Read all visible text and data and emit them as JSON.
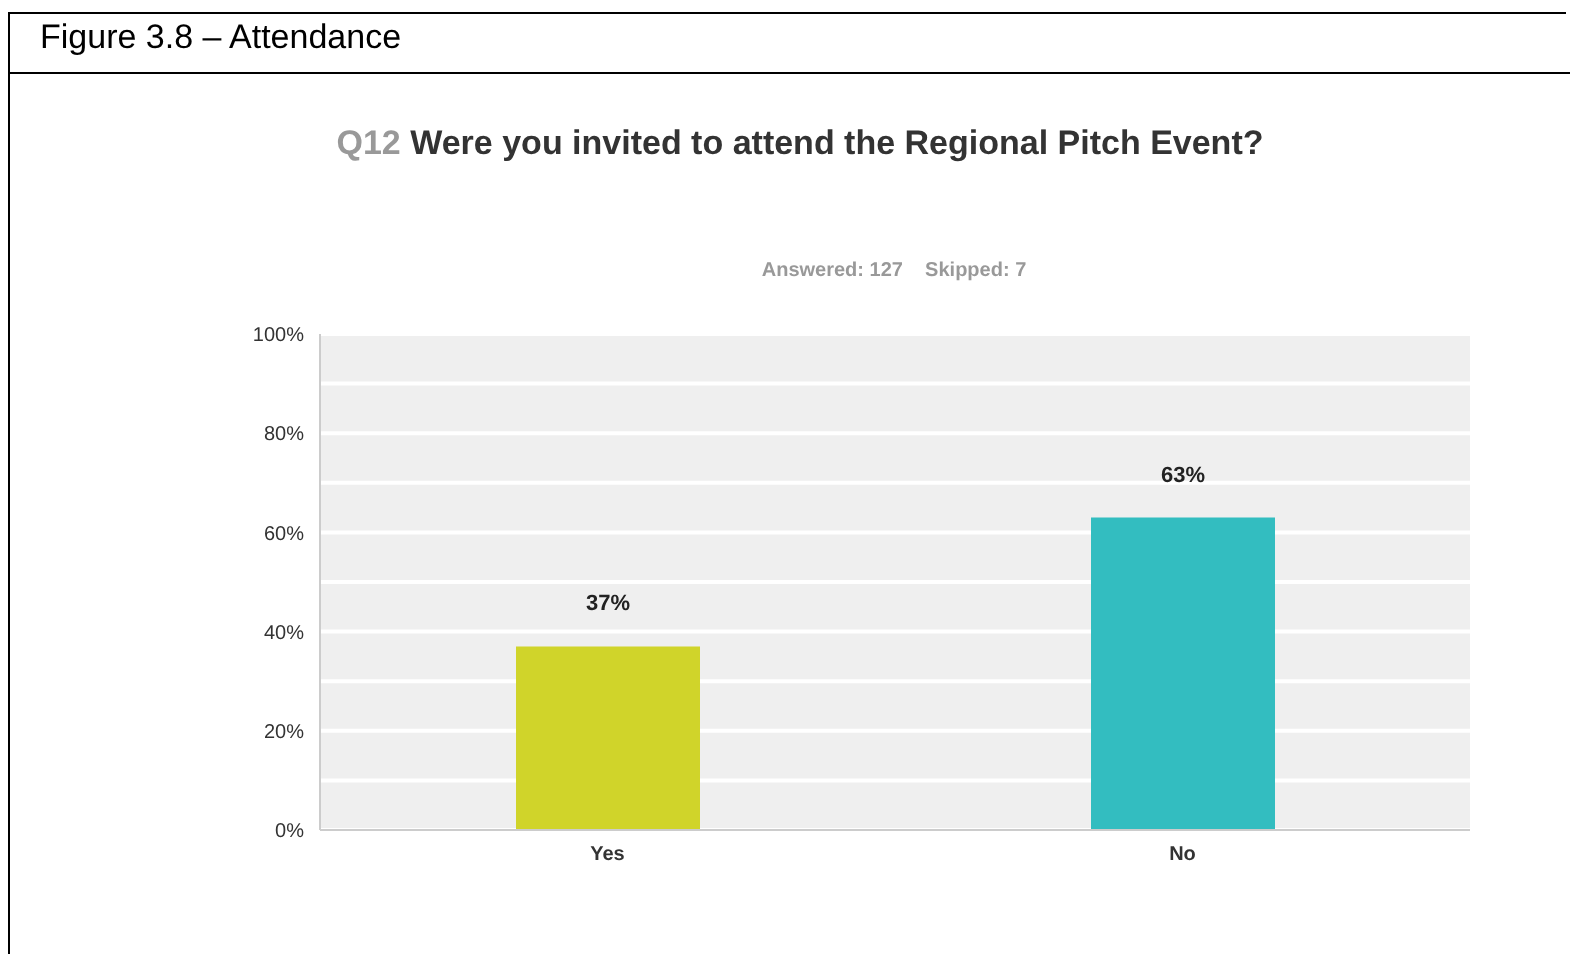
{
  "chart_data": {
    "type": "bar",
    "title": "Figure 3.8 – Attendance",
    "subtitle": "Q12 Were you invited to attend the Regional Pitch Event?",
    "annotations": [
      "Answered: 127    Skipped: 7"
    ],
    "categories": [
      "Yes",
      "No"
    ],
    "values": [
      37,
      63
    ],
    "colors": [
      "#d0d42a",
      "#33bdc0"
    ],
    "value_labels": [
      "37%",
      "63%"
    ],
    "ylim": [
      0,
      100
    ],
    "yticks": [
      {
        "value": 0,
        "label": "0%"
      },
      {
        "value": 10,
        "label": null
      },
      {
        "value": 20,
        "label": "20%"
      },
      {
        "value": 30,
        "label": null
      },
      {
        "value": 40,
        "label": "40%"
      },
      {
        "value": 50,
        "label": null
      },
      {
        "value": 60,
        "label": "60%"
      },
      {
        "value": 70,
        "label": null
      },
      {
        "value": 80,
        "label": "80%"
      },
      {
        "value": 90,
        "label": null
      },
      {
        "value": 100,
        "label": "100%"
      }
    ],
    "grid": "y"
  }
}
